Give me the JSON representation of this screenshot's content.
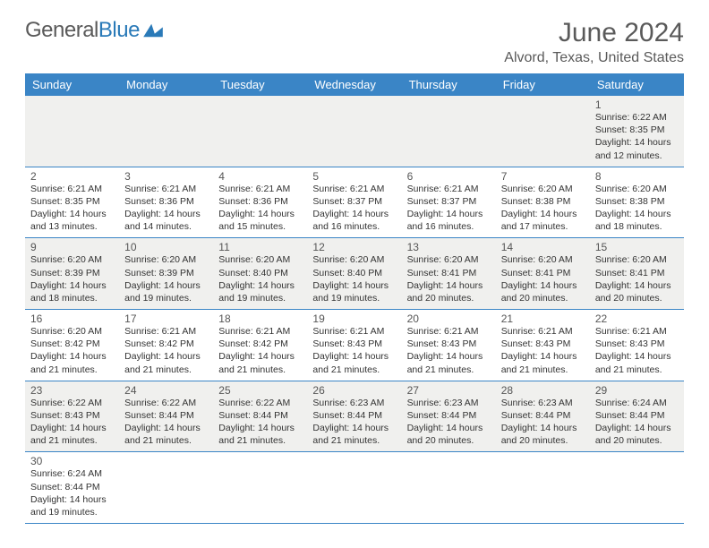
{
  "logo": {
    "part1": "General",
    "part2": "Blue"
  },
  "header": {
    "title": "June 2024",
    "location": "Alvord, Texas, United States"
  },
  "style": {
    "header_bg": "#3a85c6",
    "header_fg": "#ffffff",
    "row_bg_odd": "#f0f0ee",
    "row_bg_even": "#ffffff",
    "cell_border": "#3a85c6",
    "daynum_color": "#555555",
    "text_color": "#333333",
    "title_color": "#5a5a5a",
    "title_fontsize": 30,
    "location_fontsize": 16,
    "header_fontsize": 13,
    "daynum_fontsize": 12,
    "body_fontsize": 10.5,
    "columns": 7,
    "rows": 6
  },
  "daynames": [
    "Sunday",
    "Monday",
    "Tuesday",
    "Wednesday",
    "Thursday",
    "Friday",
    "Saturday"
  ],
  "labels": {
    "sunrise": "Sunrise:",
    "sunset": "Sunset:",
    "daylight": "Daylight:"
  },
  "first_blank_cells": 6,
  "days": [
    {
      "n": 1,
      "sr": "6:22 AM",
      "ss": "8:35 PM",
      "dl": "14 hours and 12 minutes."
    },
    {
      "n": 2,
      "sr": "6:21 AM",
      "ss": "8:35 PM",
      "dl": "14 hours and 13 minutes."
    },
    {
      "n": 3,
      "sr": "6:21 AM",
      "ss": "8:36 PM",
      "dl": "14 hours and 14 minutes."
    },
    {
      "n": 4,
      "sr": "6:21 AM",
      "ss": "8:36 PM",
      "dl": "14 hours and 15 minutes."
    },
    {
      "n": 5,
      "sr": "6:21 AM",
      "ss": "8:37 PM",
      "dl": "14 hours and 16 minutes."
    },
    {
      "n": 6,
      "sr": "6:21 AM",
      "ss": "8:37 PM",
      "dl": "14 hours and 16 minutes."
    },
    {
      "n": 7,
      "sr": "6:20 AM",
      "ss": "8:38 PM",
      "dl": "14 hours and 17 minutes."
    },
    {
      "n": 8,
      "sr": "6:20 AM",
      "ss": "8:38 PM",
      "dl": "14 hours and 18 minutes."
    },
    {
      "n": 9,
      "sr": "6:20 AM",
      "ss": "8:39 PM",
      "dl": "14 hours and 18 minutes."
    },
    {
      "n": 10,
      "sr": "6:20 AM",
      "ss": "8:39 PM",
      "dl": "14 hours and 19 minutes."
    },
    {
      "n": 11,
      "sr": "6:20 AM",
      "ss": "8:40 PM",
      "dl": "14 hours and 19 minutes."
    },
    {
      "n": 12,
      "sr": "6:20 AM",
      "ss": "8:40 PM",
      "dl": "14 hours and 19 minutes."
    },
    {
      "n": 13,
      "sr": "6:20 AM",
      "ss": "8:41 PM",
      "dl": "14 hours and 20 minutes."
    },
    {
      "n": 14,
      "sr": "6:20 AM",
      "ss": "8:41 PM",
      "dl": "14 hours and 20 minutes."
    },
    {
      "n": 15,
      "sr": "6:20 AM",
      "ss": "8:41 PM",
      "dl": "14 hours and 20 minutes."
    },
    {
      "n": 16,
      "sr": "6:20 AM",
      "ss": "8:42 PM",
      "dl": "14 hours and 21 minutes."
    },
    {
      "n": 17,
      "sr": "6:21 AM",
      "ss": "8:42 PM",
      "dl": "14 hours and 21 minutes."
    },
    {
      "n": 18,
      "sr": "6:21 AM",
      "ss": "8:42 PM",
      "dl": "14 hours and 21 minutes."
    },
    {
      "n": 19,
      "sr": "6:21 AM",
      "ss": "8:43 PM",
      "dl": "14 hours and 21 minutes."
    },
    {
      "n": 20,
      "sr": "6:21 AM",
      "ss": "8:43 PM",
      "dl": "14 hours and 21 minutes."
    },
    {
      "n": 21,
      "sr": "6:21 AM",
      "ss": "8:43 PM",
      "dl": "14 hours and 21 minutes."
    },
    {
      "n": 22,
      "sr": "6:21 AM",
      "ss": "8:43 PM",
      "dl": "14 hours and 21 minutes."
    },
    {
      "n": 23,
      "sr": "6:22 AM",
      "ss": "8:43 PM",
      "dl": "14 hours and 21 minutes."
    },
    {
      "n": 24,
      "sr": "6:22 AM",
      "ss": "8:44 PM",
      "dl": "14 hours and 21 minutes."
    },
    {
      "n": 25,
      "sr": "6:22 AM",
      "ss": "8:44 PM",
      "dl": "14 hours and 21 minutes."
    },
    {
      "n": 26,
      "sr": "6:23 AM",
      "ss": "8:44 PM",
      "dl": "14 hours and 21 minutes."
    },
    {
      "n": 27,
      "sr": "6:23 AM",
      "ss": "8:44 PM",
      "dl": "14 hours and 20 minutes."
    },
    {
      "n": 28,
      "sr": "6:23 AM",
      "ss": "8:44 PM",
      "dl": "14 hours and 20 minutes."
    },
    {
      "n": 29,
      "sr": "6:24 AM",
      "ss": "8:44 PM",
      "dl": "14 hours and 20 minutes."
    },
    {
      "n": 30,
      "sr": "6:24 AM",
      "ss": "8:44 PM",
      "dl": "14 hours and 19 minutes."
    }
  ]
}
